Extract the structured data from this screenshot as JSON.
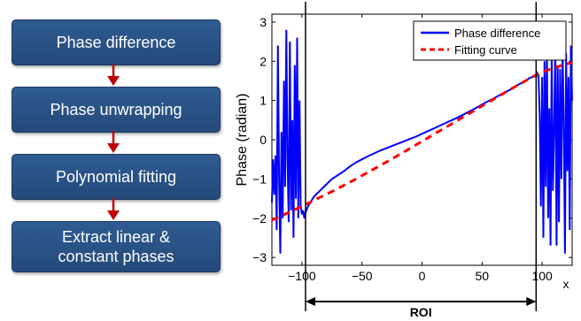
{
  "flowchart": {
    "steps": [
      "Phase difference",
      "Phase unwrapping",
      "Polynomial fitting",
      "Extract linear &\nconstant phases"
    ],
    "box_color": "#2b5387",
    "arrow_color": "#c00000"
  },
  "chart_data": {
    "type": "line",
    "xlabel": "x",
    "ylabel": "Phase (radian)",
    "xlim": [
      -125,
      125
    ],
    "ylim": [
      -3.2,
      3.2
    ],
    "xticks": [
      -100,
      -50,
      0,
      50,
      100
    ],
    "yticks": [
      -3,
      -2,
      -1,
      0,
      1,
      2,
      3
    ],
    "xtick_labels": [
      "−100",
      "−50",
      "0",
      "50",
      "100"
    ],
    "ytick_labels": [
      "−3",
      "−2",
      "−1",
      "0",
      "1",
      "2",
      "3"
    ],
    "legend": "top-right",
    "roi": {
      "label": "ROI",
      "x_start": -97,
      "x_end": 95
    },
    "series": [
      {
        "name": "Phase difference",
        "color": "#0000ff",
        "style": "solid",
        "x": [
          -125,
          -124,
          -123,
          -122,
          -121,
          -120,
          -119,
          -118,
          -117,
          -116,
          -115,
          -114,
          -113,
          -112,
          -111,
          -110,
          -109,
          -108,
          -107,
          -106,
          -105,
          -104,
          -103,
          -102,
          -101,
          -100,
          -99,
          -98,
          -97,
          -95,
          -90,
          -85,
          -80,
          -75,
          -70,
          -65,
          -60,
          -55,
          -50,
          -45,
          -40,
          -35,
          -30,
          -25,
          -20,
          -15,
          -10,
          -5,
          0,
          5,
          10,
          15,
          20,
          25,
          30,
          35,
          40,
          45,
          50,
          55,
          60,
          65,
          70,
          75,
          80,
          85,
          90,
          92,
          94,
          95,
          96,
          97,
          98,
          99,
          100,
          101,
          102,
          103,
          104,
          105,
          106,
          107,
          108,
          109,
          110,
          111,
          112,
          113,
          114,
          115,
          116,
          117,
          118,
          119,
          120,
          121,
          122,
          123,
          124,
          125
        ],
        "y": [
          -1.6,
          -0.5,
          -1.4,
          -0.4,
          -2.3,
          2.4,
          -1.0,
          -2.9,
          0.2,
          -2.0,
          1.5,
          -1.2,
          2.8,
          -0.5,
          -2.1,
          2.5,
          -1.8,
          0.5,
          -2.5,
          1.9,
          -1.5,
          2.6,
          -2.0,
          1.0,
          -1.7,
          -1.9,
          -1.8,
          -2.0,
          -1.85,
          -1.7,
          -1.45,
          -1.3,
          -1.15,
          -1.0,
          -0.9,
          -0.8,
          -0.68,
          -0.58,
          -0.5,
          -0.42,
          -0.35,
          -0.28,
          -0.22,
          -0.16,
          -0.1,
          -0.04,
          0.02,
          0.08,
          0.15,
          0.22,
          0.29,
          0.36,
          0.43,
          0.5,
          0.57,
          0.65,
          0.73,
          0.81,
          0.9,
          0.98,
          1.06,
          1.14,
          1.22,
          1.3,
          1.4,
          1.48,
          1.58,
          1.6,
          1.62,
          1.6,
          1.7,
          1.65,
          0.6,
          -1.7,
          1.6,
          -2.5,
          2.0,
          -1.2,
          2.4,
          -2.0,
          0.8,
          -2.7,
          2.3,
          -1.3,
          0.3,
          2.5,
          -2.7,
          1.9,
          -2.1,
          1.8,
          -1.0,
          2.3,
          0.5,
          -2.9,
          2.2,
          -0.8,
          1.6,
          -2.3,
          2.4,
          1.0
        ],
        "pattern": [
          -1.6,
          -0.5,
          -1.4,
          -0.4,
          -2.3,
          2.4,
          -1.0,
          -2.9,
          0.2,
          -2.0,
          1.5,
          -1.2,
          2.8,
          -0.5,
          -2.1,
          2.5,
          -1.8,
          0.5,
          -2.5,
          1.9,
          -1.5,
          2.6,
          -2.0,
          1.0,
          -1.7
        ]
      },
      {
        "name": "Fitting curve",
        "color": "#ff0000",
        "style": "dashed",
        "x": [
          -125,
          -115,
          -105,
          -95,
          -85,
          -75,
          -65,
          -55,
          -45,
          -35,
          -25,
          -15,
          -5,
          5,
          15,
          25,
          35,
          45,
          55,
          65,
          75,
          85,
          95,
          105,
          115,
          125
        ],
        "y": [
          -2.05,
          -1.91,
          -1.77,
          -1.62,
          -1.47,
          -1.32,
          -1.16,
          -1.0,
          -0.83,
          -0.66,
          -0.49,
          -0.31,
          -0.13,
          0.05,
          0.23,
          0.41,
          0.59,
          0.77,
          0.95,
          1.13,
          1.31,
          1.48,
          1.65,
          1.78,
          1.88,
          1.97
        ]
      }
    ]
  }
}
